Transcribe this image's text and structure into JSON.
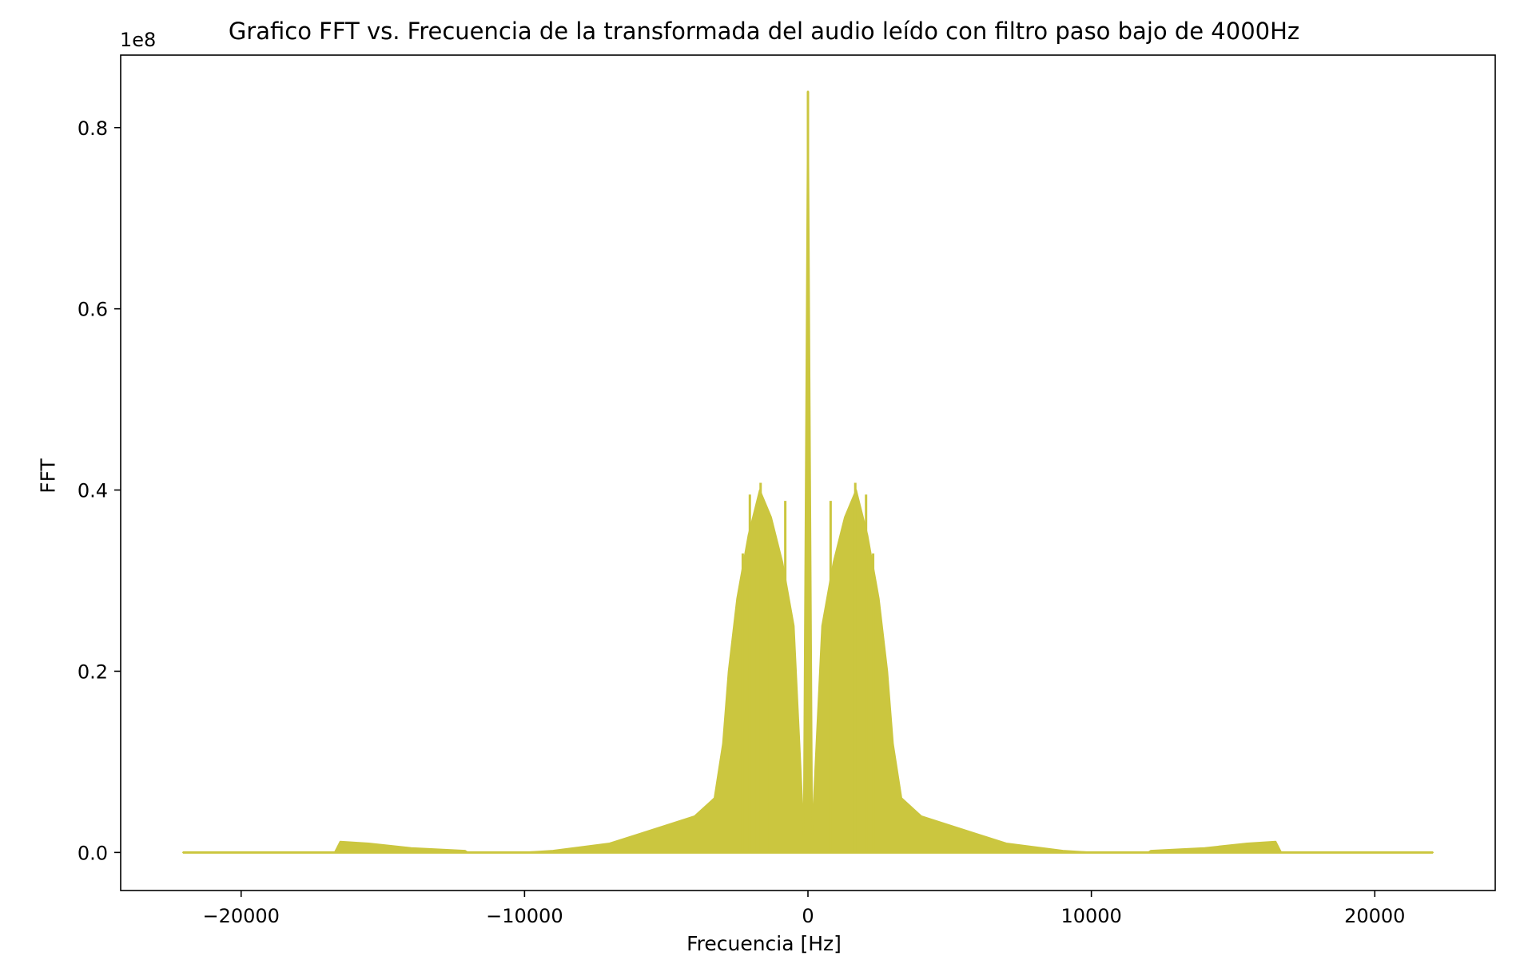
{
  "chart_data": {
    "type": "line",
    "title": "Grafico FFT vs. Frecuencia de la transformada del audio leído con filtro paso bajo de 4000Hz",
    "xlabel": "Frecuencia [Hz]",
    "ylabel": "FFT",
    "y_offset_label": "1e8",
    "xlim": [
      -24250,
      24250
    ],
    "ylim": [
      -0.042,
      0.88
    ],
    "x_ticks": [
      -20000,
      -10000,
      0,
      10000,
      20000
    ],
    "x_tick_labels": [
      "−20000",
      "−10000",
      "0",
      "10000",
      "20000"
    ],
    "y_ticks": [
      0.0,
      0.2,
      0.4,
      0.6,
      0.8
    ],
    "y_tick_labels": [
      "0.0",
      "0.2",
      "0.4",
      "0.6",
      "0.8"
    ],
    "grid": false,
    "legend": "none",
    "series": [
      {
        "color": "#cbc63f",
        "envelope": {
          "x": [
            -22050,
            -16700,
            -16500,
            -15500,
            -14000,
            -12100,
            -12000,
            -10000,
            -9000,
            -7000,
            -6000,
            -5000,
            -4000,
            -3300,
            -3000,
            -2800,
            -2500,
            -2100,
            -1700,
            -1300,
            -900,
            -500,
            -300,
            -150,
            0,
            150,
            300,
            500,
            900,
            1300,
            1700,
            2100,
            2500,
            2800,
            3000,
            3300,
            4000,
            5000,
            6000,
            7000,
            9000,
            10000,
            12000,
            12100,
            14000,
            15500,
            16500,
            16700,
            22050
          ],
          "y": [
            0.0,
            0.0,
            0.012,
            0.01,
            0.005,
            0.002,
            0.0,
            0.0,
            0.002,
            0.01,
            0.02,
            0.03,
            0.04,
            0.06,
            0.12,
            0.2,
            0.28,
            0.35,
            0.4,
            0.37,
            0.32,
            0.25,
            0.12,
            0.02,
            0.84,
            0.02,
            0.12,
            0.25,
            0.32,
            0.37,
            0.4,
            0.35,
            0.28,
            0.2,
            0.12,
            0.06,
            0.04,
            0.03,
            0.02,
            0.01,
            0.002,
            0.0,
            0.0,
            0.002,
            0.005,
            0.01,
            0.012,
            0.0,
            0.0
          ]
        },
        "peaks": [
          {
            "x": 0,
            "y": 0.84
          },
          {
            "x": -1670,
            "y": 0.408
          },
          {
            "x": 1670,
            "y": 0.408
          },
          {
            "x": -2050,
            "y": 0.395
          },
          {
            "x": 2050,
            "y": 0.395
          },
          {
            "x": -800,
            "y": 0.388
          },
          {
            "x": 800,
            "y": 0.388
          },
          {
            "x": -1800,
            "y": 0.385
          },
          {
            "x": 1800,
            "y": 0.385
          },
          {
            "x": -1450,
            "y": 0.376
          },
          {
            "x": 1450,
            "y": 0.376
          },
          {
            "x": -2300,
            "y": 0.33
          },
          {
            "x": 2300,
            "y": 0.33
          }
        ]
      }
    ]
  }
}
